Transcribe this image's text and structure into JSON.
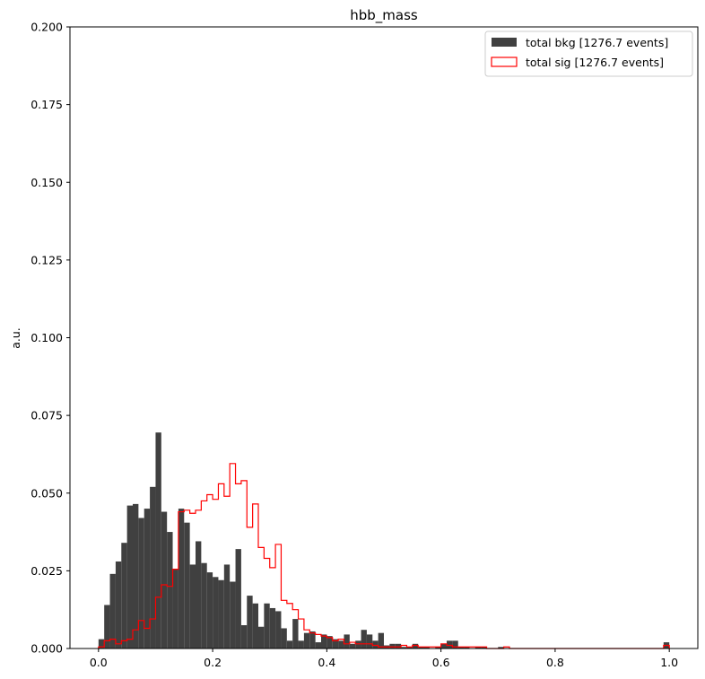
{
  "chart_data": {
    "type": "bar",
    "title": "hbb_mass",
    "xlabel": "",
    "ylabel": "a.u.",
    "xlim": [
      -0.05,
      1.05
    ],
    "ylim": [
      0,
      0.2
    ],
    "x_ticks": [
      0.0,
      0.2,
      0.4,
      0.6,
      0.8,
      1.0
    ],
    "x_tick_labels": [
      "0.0",
      "0.2",
      "0.4",
      "0.6",
      "0.8",
      "1.0"
    ],
    "y_ticks": [
      0.0,
      0.025,
      0.05,
      0.075,
      0.1,
      0.125,
      0.15,
      0.175,
      0.2
    ],
    "y_tick_labels": [
      "0.000",
      "0.025",
      "0.050",
      "0.075",
      "0.100",
      "0.125",
      "0.150",
      "0.175",
      "0.200"
    ],
    "grid": false,
    "legend_position": "top-right",
    "bins": {
      "start": 0.0,
      "width": 0.01,
      "count": 100
    },
    "series": [
      {
        "name": "total bkg [1276.7 events]",
        "style": "filled",
        "color": "#404040",
        "values": [
          0.003,
          0.014,
          0.024,
          0.028,
          0.034,
          0.046,
          0.0465,
          0.042,
          0.045,
          0.052,
          0.0695,
          0.044,
          0.0375,
          0.0255,
          0.045,
          0.0405,
          0.027,
          0.0345,
          0.0275,
          0.0245,
          0.023,
          0.022,
          0.027,
          0.0215,
          0.032,
          0.0075,
          0.017,
          0.0145,
          0.007,
          0.0145,
          0.013,
          0.012,
          0.0065,
          0.0025,
          0.0095,
          0.0025,
          0.005,
          0.0055,
          0.002,
          0.0045,
          0.004,
          0.003,
          0.0025,
          0.0045,
          0.0015,
          0.0025,
          0.006,
          0.0045,
          0.0025,
          0.005,
          0.001,
          0.0015,
          0.0015,
          0.0005,
          0.0005,
          0.0015,
          0.0005,
          0.0005,
          0.0,
          0.0005,
          0.0015,
          0.0025,
          0.0025,
          0.0005,
          0.0005,
          0.0,
          0.0005,
          0.0005,
          0.0,
          0.0,
          0.0005,
          0.0,
          0.0,
          0.0,
          0.0,
          0.0,
          0.0,
          0.0,
          0.0,
          0.0,
          0.0,
          0.0,
          0.0,
          0.0,
          0.0,
          0.0,
          0.0,
          0.0,
          0.0,
          0.0,
          0.0,
          0.0,
          0.0,
          0.0,
          0.0,
          0.0,
          0.0,
          0.0,
          0.0,
          0.002
        ]
      },
      {
        "name": "total sig [1276.7 events]",
        "style": "step",
        "color": "#ff0000",
        "values": [
          0.0005,
          0.0025,
          0.003,
          0.0015,
          0.0025,
          0.003,
          0.006,
          0.009,
          0.0065,
          0.0095,
          0.0165,
          0.0205,
          0.02,
          0.0255,
          0.044,
          0.0445,
          0.0435,
          0.0445,
          0.0475,
          0.0495,
          0.048,
          0.053,
          0.049,
          0.0595,
          0.053,
          0.054,
          0.039,
          0.0465,
          0.0325,
          0.029,
          0.026,
          0.0335,
          0.0155,
          0.0145,
          0.0125,
          0.0095,
          0.006,
          0.005,
          0.0045,
          0.004,
          0.0035,
          0.0025,
          0.003,
          0.0015,
          0.002,
          0.0015,
          0.0015,
          0.0015,
          0.001,
          0.0005,
          0.0005,
          0.0005,
          0.0005,
          0.001,
          0.0005,
          0.001,
          0.0005,
          0.0005,
          0.0005,
          0.0005,
          0.0015,
          0.001,
          0.0005,
          0.0005,
          0.0005,
          0.0005,
          0.0005,
          0.0005,
          0.0,
          0.0,
          0.0,
          0.0005,
          0.0,
          0.0,
          0.0,
          0.0,
          0.0,
          0.0,
          0.0,
          0.0,
          0.0,
          0.0,
          0.0,
          0.0,
          0.0,
          0.0,
          0.0,
          0.0,
          0.0,
          0.0,
          0.0,
          0.0,
          0.0,
          0.0,
          0.0,
          0.0,
          0.0,
          0.0,
          0.0,
          0.001
        ]
      }
    ]
  }
}
